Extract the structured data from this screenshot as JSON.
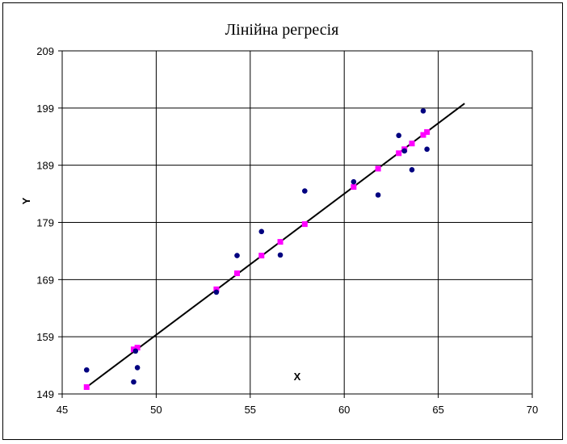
{
  "chart_data": {
    "type": "scatter",
    "title": "Лінійна регресія",
    "xlabel": "X",
    "ylabel": "Y",
    "xlim": [
      45,
      70
    ],
    "ylim": [
      149,
      209
    ],
    "x_ticks": [
      "45",
      "50",
      "55",
      "60",
      "65",
      "70"
    ],
    "y_ticks": [
      "149",
      "159",
      "169",
      "179",
      "189",
      "199",
      "209"
    ],
    "grid": true,
    "legend": "none",
    "colors": {
      "observed": "#000080",
      "predicted": "#ff00ff",
      "regression_line": "#000000",
      "grid": "#000000"
    },
    "series": [
      {
        "marker": "circle",
        "points": [
          {
            "x": 46.3,
            "y": 153.2
          },
          {
            "x": 48.8,
            "y": 151.1
          },
          {
            "x": 48.9,
            "y": 156.5
          },
          {
            "x": 49.0,
            "y": 153.6
          },
          {
            "x": 53.2,
            "y": 166.8
          },
          {
            "x": 54.3,
            "y": 173.2
          },
          {
            "x": 55.6,
            "y": 177.4
          },
          {
            "x": 56.6,
            "y": 173.3
          },
          {
            "x": 57.9,
            "y": 184.5
          },
          {
            "x": 60.5,
            "y": 186.1
          },
          {
            "x": 61.8,
            "y": 183.8
          },
          {
            "x": 62.9,
            "y": 194.2
          },
          {
            "x": 63.2,
            "y": 191.5
          },
          {
            "x": 63.6,
            "y": 188.2
          },
          {
            "x": 64.2,
            "y": 198.5
          },
          {
            "x": 64.4,
            "y": 191.8
          }
        ]
      },
      {
        "marker": "square",
        "points": [
          {
            "x": 46.3,
            "y": 150.2
          },
          {
            "x": 48.8,
            "y": 156.8
          },
          {
            "x": 49.0,
            "y": 157.1
          },
          {
            "x": 53.2,
            "y": 167.3
          },
          {
            "x": 54.3,
            "y": 170.1
          },
          {
            "x": 55.6,
            "y": 173.2
          },
          {
            "x": 56.6,
            "y": 175.6
          },
          {
            "x": 57.9,
            "y": 178.7
          },
          {
            "x": 60.5,
            "y": 185.2
          },
          {
            "x": 61.8,
            "y": 188.4
          },
          {
            "x": 62.9,
            "y": 191.1
          },
          {
            "x": 63.2,
            "y": 191.8
          },
          {
            "x": 63.6,
            "y": 192.8
          },
          {
            "x": 64.2,
            "y": 194.3
          },
          {
            "x": 64.4,
            "y": 194.8
          }
        ]
      }
    ],
    "regression_line": {
      "x": [
        46.3,
        66.4
      ],
      "y": [
        150.2,
        199.8
      ]
    }
  }
}
